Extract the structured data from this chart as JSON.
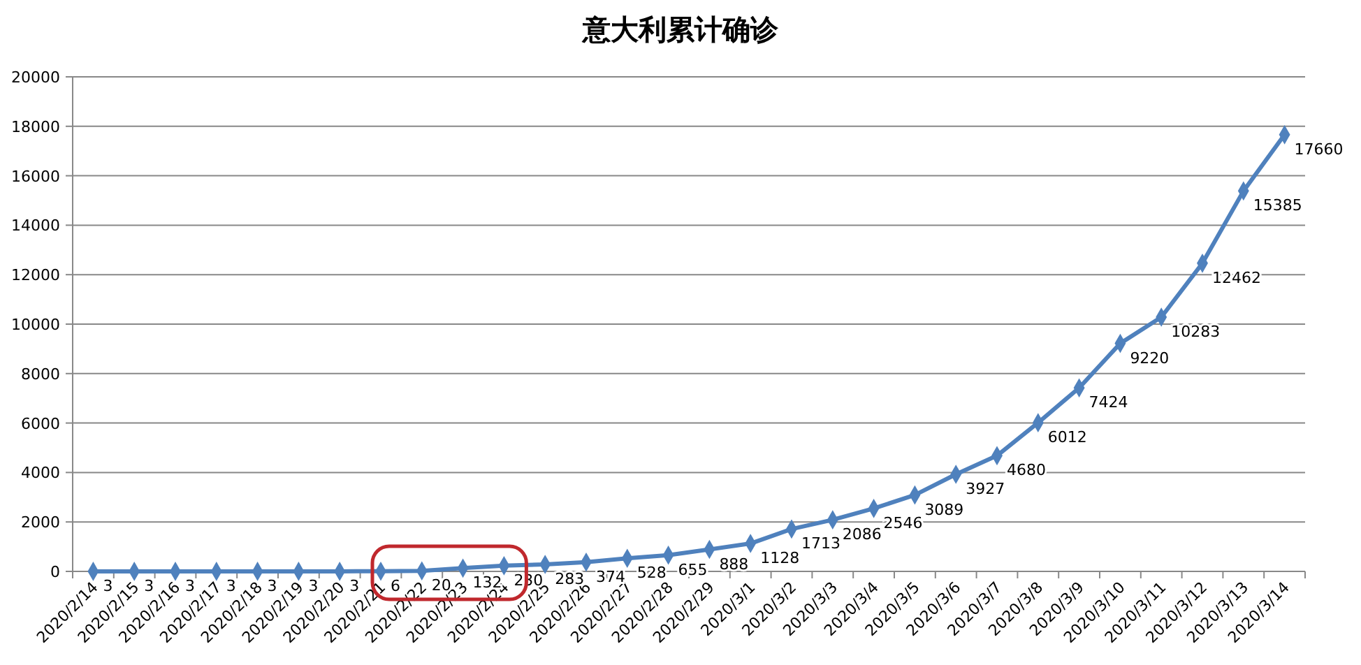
{
  "chart_data": {
    "type": "line",
    "title": "意大利累计确诊",
    "categories": [
      "2020/2/14",
      "2020/2/15",
      "2020/2/16",
      "2020/2/17",
      "2020/2/18",
      "2020/2/19",
      "2020/2/20",
      "2020/2/21",
      "2020/2/22",
      "2020/2/23",
      "2020/2/24",
      "2020/2/25",
      "2020/2/26",
      "2020/2/27",
      "2020/2/28",
      "2020/2/29",
      "2020/3/1",
      "2020/3/2",
      "2020/3/3",
      "2020/3/4",
      "2020/3/5",
      "2020/3/6",
      "2020/3/7",
      "2020/3/8",
      "2020/3/9",
      "2020/3/10",
      "2020/3/11",
      "2020/3/12",
      "2020/3/13",
      "2020/3/14"
    ],
    "series": [
      {
        "color": "#4f81bd",
        "values": [
          3,
          3,
          3,
          3,
          3,
          3,
          3,
          6,
          20,
          132,
          230,
          283,
          374,
          528,
          655,
          888,
          1128,
          1713,
          2086,
          2546,
          3089,
          3927,
          4680,
          6012,
          7424,
          9220,
          10283,
          12462,
          15385,
          17660
        ]
      }
    ],
    "ylim": [
      0,
      20000
    ],
    "yticks": [
      0,
      2000,
      4000,
      6000,
      8000,
      10000,
      12000,
      14000,
      16000,
      18000,
      20000
    ],
    "grid": "y",
    "marker": "diamond",
    "line_style": "solid",
    "data_labels": true
  }
}
